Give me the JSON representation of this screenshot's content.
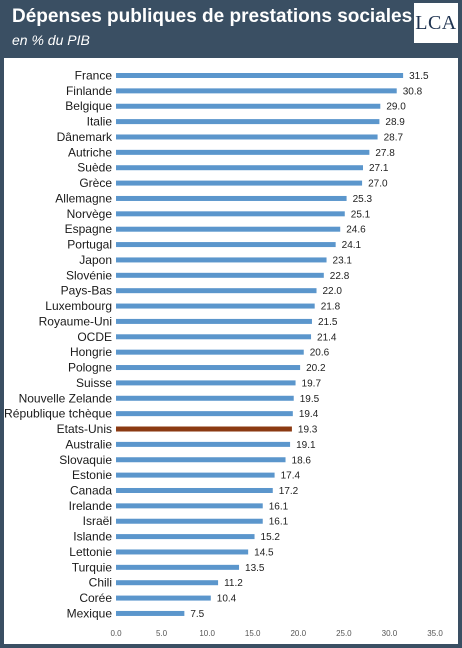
{
  "title": "Dépenses publiques de prestations sociales",
  "subtitle": "en % du PIB",
  "logo": {
    "text": "LCA"
  },
  "colors": {
    "bar": "#5b96cc",
    "highlight": "#8b3a12",
    "header_bg": "#3a4f63"
  },
  "chart_data": {
    "type": "bar",
    "orientation": "horizontal",
    "title": "Dépenses publiques de prestations sociales",
    "subtitle": "en % du PIB",
    "categories": [
      "France",
      "Finlande",
      "Belgique",
      "Italie",
      "Dânemark",
      "Autriche",
      "Suède",
      "Grèce",
      "Allemagne",
      "Norvège",
      "Espagne",
      "Portugal",
      "Japon",
      "Slovénie",
      "Pays-Bas",
      "Luxembourg",
      "Royaume-Uni",
      "OCDE",
      "Hongrie",
      "Pologne",
      "Suisse",
      "Nouvelle Zelande",
      "République tchèque",
      "Etats-Unis",
      "Australie",
      "Slovaquie",
      "Estonie",
      "Canada",
      "Irelande",
      "Israël",
      "Islande",
      "Lettonie",
      "Turquie",
      "Chili",
      "Corée",
      "Mexique"
    ],
    "values": [
      31.5,
      30.8,
      29.0,
      28.9,
      28.7,
      27.8,
      27.1,
      27.0,
      25.3,
      25.1,
      24.6,
      24.1,
      23.1,
      22.8,
      22.0,
      21.8,
      21.5,
      21.4,
      20.6,
      20.2,
      19.7,
      19.5,
      19.4,
      19.3,
      19.1,
      18.6,
      17.4,
      17.2,
      16.1,
      16.1,
      15.2,
      14.5,
      13.5,
      11.2,
      10.4,
      7.5
    ],
    "value_labels": [
      "31.5",
      "30.8",
      "29.0",
      "28.9",
      "28.7",
      "27.8",
      "27.1",
      "27.0",
      "25.3",
      "25.1",
      "24.6",
      "24.1",
      "23.1",
      "22.8",
      "22.0",
      "21.8",
      "21.5",
      "21.4",
      "20.6",
      "20.2",
      "19.7",
      "19.5",
      "19.4",
      "19.3",
      "19.1",
      "18.6",
      "17.4",
      "17.2",
      "16.1",
      "16.1",
      "15.2",
      "14.5",
      "13.5",
      "11.2",
      "10.4",
      "7.5"
    ],
    "highlight": "Etats-Unis",
    "xlim": [
      0,
      35
    ],
    "xticks": [
      "0.0",
      "5.0",
      "10.0",
      "15.0",
      "20.0",
      "25.0",
      "30.0",
      "35.0"
    ],
    "xlabel": "",
    "ylabel": "",
    "grid": false,
    "legend": "none"
  }
}
